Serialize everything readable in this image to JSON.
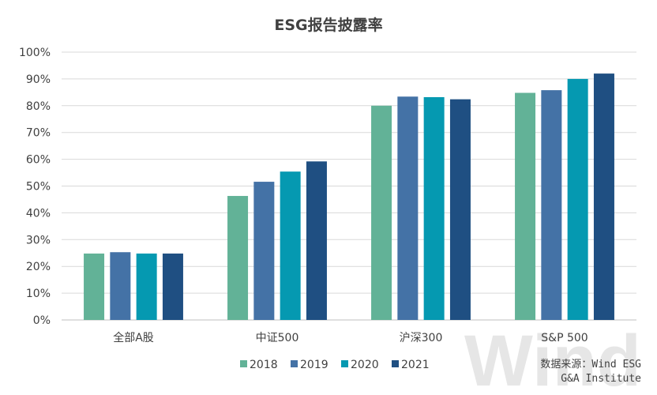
{
  "chart_data": {
    "type": "bar",
    "title": "ESG报告披露率",
    "categories": [
      "全部A股",
      "中证500",
      "沪深300",
      "S&P 500"
    ],
    "series": [
      {
        "name": "2018",
        "color": "#62b297",
        "values": [
          24.8,
          46.3,
          80.0,
          84.8
        ]
      },
      {
        "name": "2019",
        "color": "#4472a6",
        "values": [
          25.3,
          51.6,
          83.4,
          85.8
        ]
      },
      {
        "name": "2020",
        "color": "#0599b1",
        "values": [
          24.8,
          55.4,
          83.2,
          90.0
        ]
      },
      {
        "name": "2021",
        "color": "#1f4f82",
        "values": [
          24.8,
          59.2,
          82.4,
          92.0
        ]
      }
    ],
    "ylim": [
      0,
      100
    ],
    "y_ticks": [
      "0%",
      "10%",
      "20%",
      "30%",
      "40%",
      "50%",
      "60%",
      "70%",
      "80%",
      "90%",
      "100%"
    ],
    "grid": true,
    "legend_position": "bottom"
  },
  "source": {
    "line1": "数据来源：Wind ESG",
    "line2": "G&A Institute"
  },
  "watermark": "Wind"
}
